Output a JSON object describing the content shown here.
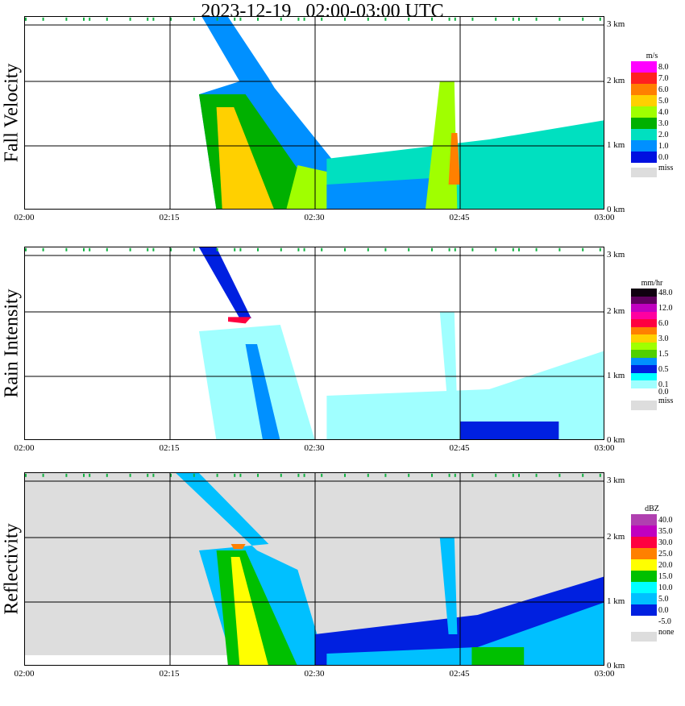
{
  "title": "2023-12-19   02:00-03:00 UTC",
  "chart_data": [
    {
      "type": "heatmap",
      "ylabel": "Fall Velocity",
      "unit": "m/s",
      "x_ticks": [
        "02:00",
        "02:15",
        "02:30",
        "02:45",
        "03:00"
      ],
      "y_ticks": [
        "3 km",
        "2 km",
        "1 km",
        "0 km"
      ],
      "xlim": [
        "02:00",
        "03:00"
      ],
      "ylim": [
        0,
        3
      ],
      "legend": [
        {
          "label": "8.0",
          "color": "#ff00ff"
        },
        {
          "label": "7.0",
          "color": "#ff2020"
        },
        {
          "label": "6.0",
          "color": "#ff8000"
        },
        {
          "label": "5.0",
          "color": "#ffd000"
        },
        {
          "label": "4.0",
          "color": "#a0ff00"
        },
        {
          "label": "3.0",
          "color": "#00b000"
        },
        {
          "label": "2.0",
          "color": "#00e0c0"
        },
        {
          "label": "1.0",
          "color": "#0090ff"
        },
        {
          "label": "0.0",
          "color": "#0010e0"
        },
        {
          "label": "miss",
          "color": "#dddddd"
        }
      ]
    },
    {
      "type": "heatmap",
      "ylabel": "Rain Intensity",
      "unit": "mm/hr",
      "x_ticks": [
        "02:00",
        "02:15",
        "02:30",
        "02:45",
        "03:00"
      ],
      "y_ticks": [
        "3 km",
        "2 km",
        "1 km",
        "0 km"
      ],
      "xlim": [
        "02:00",
        "03:00"
      ],
      "ylim": [
        0,
        3
      ],
      "legend": [
        {
          "label": "48.0",
          "color": "#100010"
        },
        {
          "label": "",
          "color": "#600060"
        },
        {
          "label": "12.0",
          "color": "#c000c0"
        },
        {
          "label": "",
          "color": "#ff00a0"
        },
        {
          "label": "6.0",
          "color": "#ff0040"
        },
        {
          "label": "",
          "color": "#ff8000"
        },
        {
          "label": "3.0",
          "color": "#ffd000"
        },
        {
          "label": "",
          "color": "#a0ff00"
        },
        {
          "label": "1.5",
          "color": "#50d000"
        },
        {
          "label": "",
          "color": "#0090ff"
        },
        {
          "label": "0.5",
          "color": "#0020e0"
        },
        {
          "label": "",
          "color": "#00ffff"
        },
        {
          "label": "0.1",
          "color": "#a0ffff"
        },
        {
          "label": "0.0",
          "color": "#ffffff"
        },
        {
          "label": "miss",
          "color": "#dddddd"
        }
      ]
    },
    {
      "type": "heatmap",
      "ylabel": "Reflectivity",
      "unit": "dBZ",
      "x_ticks": [
        "02:00",
        "02:15",
        "02:30",
        "02:45",
        "03:00"
      ],
      "y_ticks": [
        "3 km",
        "2 km",
        "1 km",
        "0 km"
      ],
      "xlim": [
        "02:00",
        "03:00"
      ],
      "ylim": [
        0,
        3
      ],
      "legend": [
        {
          "label": "40.0",
          "color": "#b040b0"
        },
        {
          "label": "35.0",
          "color": "#c000c0"
        },
        {
          "label": "30.0",
          "color": "#ff0040"
        },
        {
          "label": "25.0",
          "color": "#ff8000"
        },
        {
          "label": "20.0",
          "color": "#ffff00"
        },
        {
          "label": "15.0",
          "color": "#00c000"
        },
        {
          "label": "10.0",
          "color": "#00ffff"
        },
        {
          "label": "5.0",
          "color": "#00c0ff"
        },
        {
          "label": "0.0",
          "color": "#0020e0"
        },
        {
          "label": "-5.0",
          "color": "#ffffff"
        },
        {
          "label": "none",
          "color": "#dddddd"
        }
      ]
    }
  ]
}
